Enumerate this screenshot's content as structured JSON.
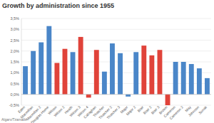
{
  "chart_data": {
    "type": "bar",
    "title": "Growth by administration since 1955",
    "categories": [
      "Eden",
      "Macmillan",
      "Macmillan 2",
      "Douglas-Home",
      "Wilson",
      "Wilson 2",
      "Heath",
      "Wilson 3",
      "Wilson 4",
      "Callaghan",
      "Thatcher",
      "Thatcher 2",
      "Thatcher 3",
      "Major",
      "Major 2",
      "Blair",
      "Blair 2",
      "Blair 3",
      "Brown",
      "Cameron",
      "Cameron 2",
      "May",
      "Johnson",
      "Sunak"
    ],
    "values": [
      1.3,
      2.0,
      2.4,
      3.15,
      1.45,
      2.1,
      1.95,
      2.65,
      -0.15,
      2.05,
      1.05,
      2.35,
      1.9,
      -0.1,
      1.95,
      2.25,
      1.8,
      2.05,
      -0.5,
      1.5,
      1.5,
      1.4,
      1.2,
      0.75
    ],
    "colors": [
      "#4a86c8",
      "#4a86c8",
      "#4a86c8",
      "#4a86c8",
      "#e0433a",
      "#e0433a",
      "#4a86c8",
      "#e0433a",
      "#e0433a",
      "#e0433a",
      "#4a86c8",
      "#4a86c8",
      "#4a86c8",
      "#4a86c8",
      "#4a86c8",
      "#e0433a",
      "#e0433a",
      "#e0433a",
      "#e0433a",
      "#4a86c8",
      "#4a86c8",
      "#4a86c8",
      "#4a86c8",
      "#4a86c8"
    ],
    "ylim": [
      -0.5,
      3.5
    ],
    "yticks": [
      {
        "value": -0.5,
        "label": "-0,5%"
      },
      {
        "value": 0,
        "label": "0,0%"
      },
      {
        "value": 0.5,
        "label": "0,5%"
      },
      {
        "value": 1,
        "label": "1,0%"
      },
      {
        "value": 1.5,
        "label": "1,5%"
      },
      {
        "value": 2,
        "label": "2,0%"
      },
      {
        "value": 2.5,
        "label": "2,5%"
      },
      {
        "value": 3,
        "label": "3,0%"
      },
      {
        "value": 3.5,
        "label": "3,5%"
      }
    ],
    "grid": true,
    "annotations": [
      "Algarv/Tzamalis"
    ]
  }
}
